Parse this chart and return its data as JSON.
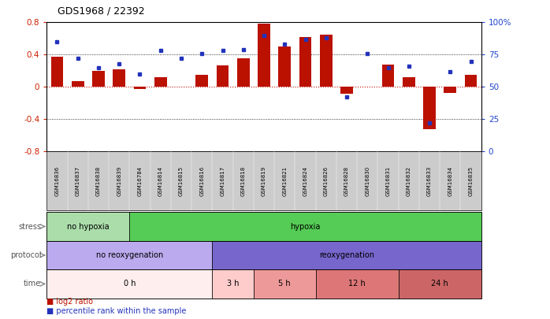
{
  "title": "GDS1968 / 22392",
  "samples": [
    "GSM16836",
    "GSM16837",
    "GSM16838",
    "GSM16839",
    "GSM16784",
    "GSM16814",
    "GSM16815",
    "GSM16816",
    "GSM16817",
    "GSM16818",
    "GSM16819",
    "GSM16821",
    "GSM16824",
    "GSM16826",
    "GSM16828",
    "GSM16830",
    "GSM16831",
    "GSM16832",
    "GSM16833",
    "GSM16834",
    "GSM16835"
  ],
  "log2_ratio": [
    0.37,
    0.07,
    0.2,
    0.22,
    -0.03,
    0.12,
    0.0,
    0.15,
    0.27,
    0.35,
    0.78,
    0.5,
    0.62,
    0.65,
    -0.08,
    0.0,
    0.28,
    0.12,
    -0.52,
    -0.07,
    0.15
  ],
  "percentile": [
    85,
    72,
    65,
    68,
    60,
    78,
    72,
    76,
    78,
    79,
    90,
    83,
    87,
    88,
    42,
    76,
    65,
    66,
    22,
    62,
    70
  ],
  "bar_color": "#bb1100",
  "dot_color": "#2233bb",
  "ylim_left": [
    -0.8,
    0.8
  ],
  "ylim_right": [
    0,
    100
  ],
  "yticks_left": [
    -0.8,
    -0.4,
    0.0,
    0.4,
    0.8
  ],
  "yticks_right": [
    0,
    25,
    50,
    75,
    100
  ],
  "ytick_labels_right": [
    "0",
    "25",
    "50",
    "75",
    "100%"
  ],
  "hlines_dotted": [
    -0.4,
    0.4
  ],
  "hline_red": 0.0,
  "stress_groups": [
    {
      "label": "no hypoxia",
      "start": 0,
      "end": 4,
      "color": "#aaddaa"
    },
    {
      "label": "hypoxia",
      "start": 4,
      "end": 21,
      "color": "#55cc55"
    }
  ],
  "protocol_groups": [
    {
      "label": "no reoxygenation",
      "start": 0,
      "end": 8,
      "color": "#bbaaee"
    },
    {
      "label": "reoxygenation",
      "start": 8,
      "end": 21,
      "color": "#7766cc"
    }
  ],
  "time_groups": [
    {
      "label": "0 h",
      "start": 0,
      "end": 8,
      "color": "#ffeeee"
    },
    {
      "label": "3 h",
      "start": 8,
      "end": 10,
      "color": "#ffcccc"
    },
    {
      "label": "5 h",
      "start": 10,
      "end": 13,
      "color": "#ee9999"
    },
    {
      "label": "12 h",
      "start": 13,
      "end": 17,
      "color": "#dd7777"
    },
    {
      "label": "24 h",
      "start": 17,
      "end": 21,
      "color": "#cc6666"
    }
  ],
  "row_labels": [
    "stress",
    "protocol",
    "time"
  ],
  "legend_items": [
    {
      "label": "log2 ratio",
      "color": "#bb1100"
    },
    {
      "label": "percentile rank within the sample",
      "color": "#2233bb"
    }
  ],
  "bg_color": "#ffffff",
  "tick_label_color_left": "#cc2200",
  "tick_label_color_right": "#2244cc",
  "xtick_bg_color": "#cccccc",
  "label_color": "#555555",
  "arrow_color": "#888888"
}
